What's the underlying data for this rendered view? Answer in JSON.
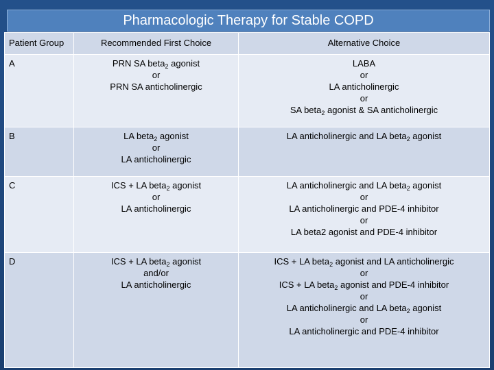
{
  "title": "Pharmacologic Therapy for Stable COPD",
  "headers": {
    "group": "Patient Group",
    "first": "Recommended First Choice",
    "alt": "Alternative Choice"
  },
  "rows": [
    {
      "group": "A",
      "first": [
        {
          "text": "PRN SA beta",
          "sub": "2",
          "after": " agonist"
        },
        {
          "text": "or"
        },
        {
          "text": "PRN SA anticholinergic"
        }
      ],
      "alt": [
        {
          "text": "LABA"
        },
        {
          "text": "or"
        },
        {
          "text": "LA anticholinergic"
        },
        {
          "text": "or"
        },
        {
          "text": "SA beta",
          "sub": "2",
          "after": " agonist  & SA anticholinergic"
        }
      ]
    },
    {
      "group": "B",
      "first": [
        {
          "text": "LA beta",
          "sub": "2",
          "after": " agonist"
        },
        {
          "text": "or"
        },
        {
          "text": "LA anticholinergic"
        }
      ],
      "alt": [
        {
          "text": "LA anticholinergic and LA beta",
          "sub": "2",
          "after": " agonist"
        }
      ]
    },
    {
      "group": "C",
      "first": [
        {
          "text": "ICS + LA beta",
          "sub": "2",
          "after": " agonist"
        },
        {
          "text": "or"
        },
        {
          "text": "LA anticholinergic"
        }
      ],
      "alt": [
        {
          "text": "LA anticholinergic and LA beta",
          "sub": "2",
          "after": " agonist"
        },
        {
          "text": "or"
        },
        {
          "text": "LA anticholinergic and PDE-4 inhibitor"
        },
        {
          "text": "or"
        },
        {
          "text": "LA beta2 agonist and PDE-4 inhibitor"
        }
      ]
    },
    {
      "group": "D",
      "first": [
        {
          "text": "ICS + LA beta",
          "sub": "2",
          "after": " agonist"
        },
        {
          "text": "and/or"
        },
        {
          "text": "LA anticholinergic"
        }
      ],
      "alt": [
        {
          "text": "ICS + LA beta",
          "sub": "2",
          "after": " agonist and LA anticholinergic"
        },
        {
          "text": "or"
        },
        {
          "text": "ICS + LA beta",
          "sub": "2",
          "after": " agonist and PDE-4 inhibitor"
        },
        {
          "text": "or"
        },
        {
          "text": "LA anticholinergic and LA beta",
          "sub": "2",
          "after": " agonist"
        },
        {
          "text": "or"
        },
        {
          "text": "LA anticholinergic and PDE-4 inhibitor"
        }
      ]
    }
  ]
}
